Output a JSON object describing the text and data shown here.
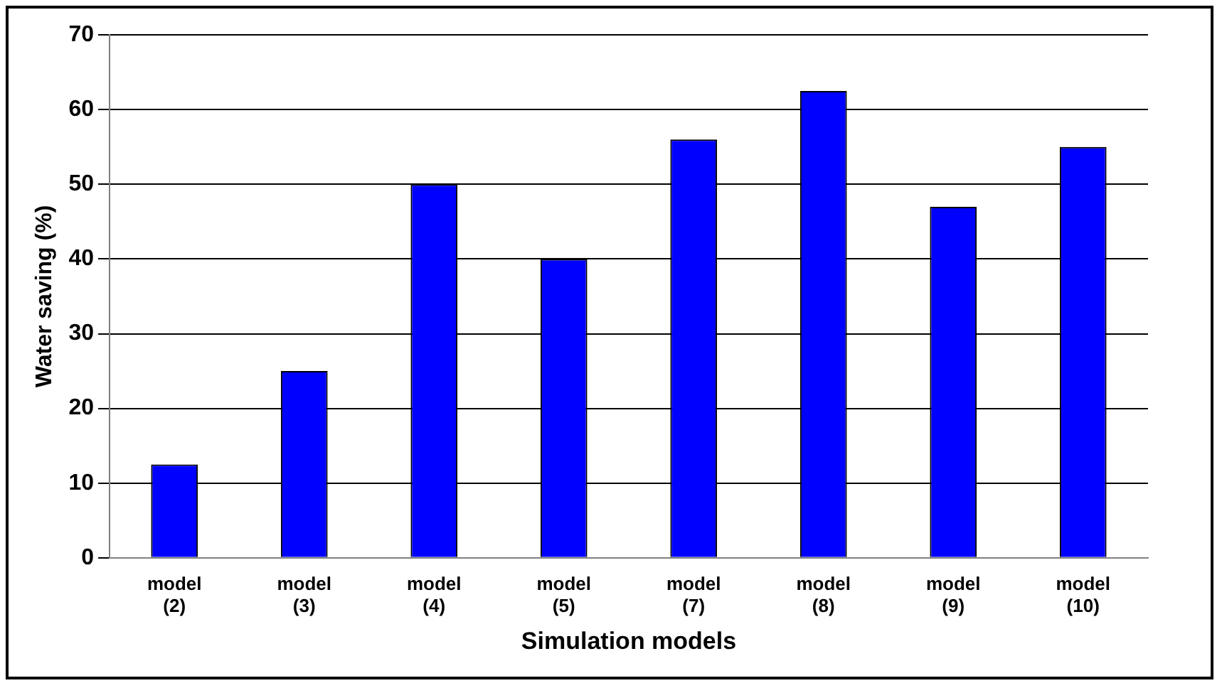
{
  "chart_data": {
    "type": "bar",
    "xlabel": "Simulation models",
    "ylabel": "Water saving (%)",
    "categories": [
      "model (2)",
      "model (3)",
      "model (4)",
      "model (5)",
      "model (7)",
      "model (8)",
      "model (9)",
      "model (10)"
    ],
    "values": [
      12.5,
      25,
      50,
      40,
      56,
      62.5,
      47,
      55
    ],
    "color": "#0000ff",
    "ylim": [
      0,
      70
    ],
    "yticks": [
      0,
      10,
      20,
      30,
      40,
      50,
      60,
      70
    ],
    "grid": "y",
    "legend": false
  }
}
